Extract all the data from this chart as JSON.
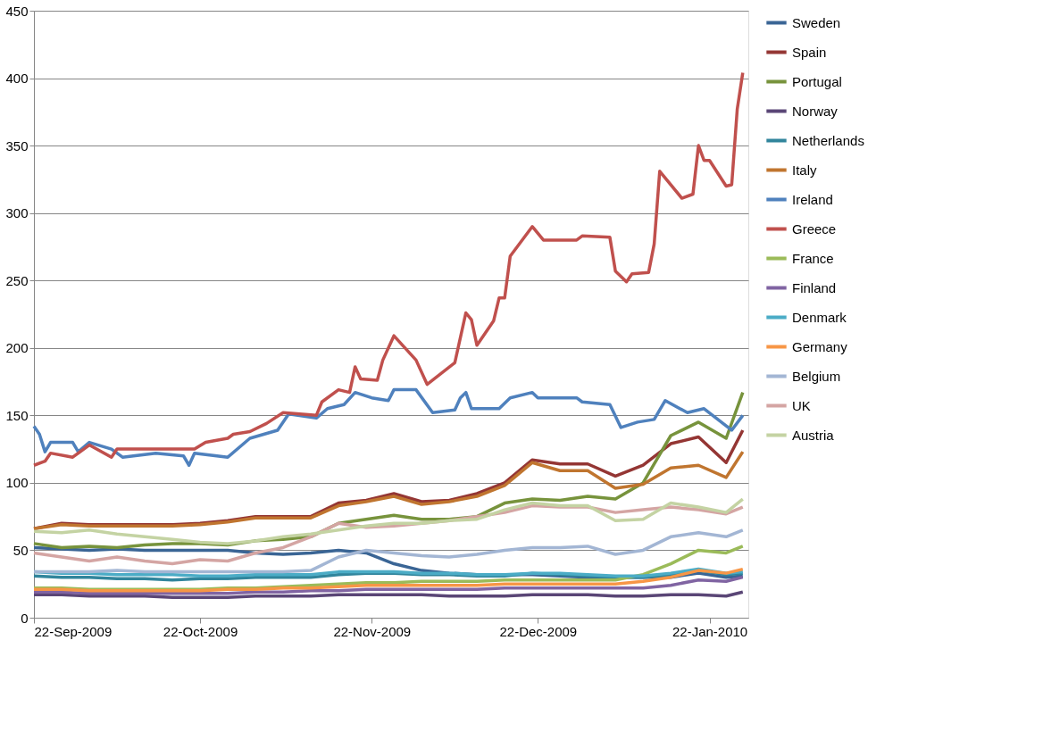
{
  "chart_data": {
    "type": "line",
    "x": [
      "2009-09-22",
      "2009-09-27",
      "2009-10-02",
      "2009-10-07",
      "2009-10-12",
      "2009-10-17",
      "2009-10-22",
      "2009-10-27",
      "2009-11-01",
      "2009-11-06",
      "2009-11-11",
      "2009-11-16",
      "2009-11-21",
      "2009-11-26",
      "2009-12-01",
      "2009-12-06",
      "2009-12-11",
      "2009-12-16",
      "2009-12-21",
      "2009-12-26",
      "2009-12-31",
      "2010-01-05",
      "2010-01-10",
      "2010-01-15",
      "2010-01-20",
      "2010-01-25",
      "2010-01-28"
    ],
    "xlim": [
      "2009-09-22",
      "2010-01-29"
    ],
    "xticks": [
      {
        "value": "2009-09-22",
        "label": "22-Sep-2009"
      },
      {
        "value": "2009-10-22",
        "label": "22-Oct-2009"
      },
      {
        "value": "2009-11-22",
        "label": "22-Nov-2009"
      },
      {
        "value": "2009-12-22",
        "label": "22-Dec-2009"
      },
      {
        "value": "2010-01-22",
        "label": "22-Jan-2010"
      }
    ],
    "ylim": [
      0,
      450
    ],
    "yticks": [
      0,
      50,
      100,
      150,
      200,
      250,
      300,
      350,
      400,
      450
    ],
    "grid": "y",
    "legend": "right",
    "marker": "none",
    "line_style": "solid",
    "series": [
      {
        "name": "Sweden",
        "color": "#3a6595",
        "values": [
          52,
          51,
          50,
          51,
          50,
          50,
          50,
          50,
          48,
          47,
          48,
          50,
          48,
          40,
          35,
          33,
          32,
          32,
          32,
          31,
          30,
          30,
          30,
          30,
          33,
          30,
          31
        ]
      },
      {
        "name": "Spain",
        "color": "#943634",
        "values": [
          66,
          70,
          69,
          69,
          69,
          69,
          70,
          72,
          75,
          75,
          75,
          85,
          87,
          92,
          86,
          87,
          92,
          100,
          117,
          114,
          114,
          105,
          113,
          129,
          134,
          115,
          139
        ]
      },
      {
        "name": "Portugal",
        "color": "#77933c",
        "values": [
          55,
          52,
          53,
          52,
          54,
          55,
          55,
          54,
          57,
          58,
          60,
          70,
          73,
          76,
          73,
          73,
          75,
          85,
          88,
          87,
          90,
          88,
          100,
          135,
          145,
          133,
          167
        ]
      },
      {
        "name": "Norway",
        "color": "#5a4676",
        "values": [
          17,
          17,
          16,
          16,
          16,
          15,
          15,
          15,
          16,
          16,
          16,
          17,
          17,
          17,
          17,
          16,
          16,
          16,
          17,
          17,
          17,
          16,
          16,
          17,
          17,
          16,
          19
        ]
      },
      {
        "name": "Netherlands",
        "color": "#31859c",
        "values": [
          31,
          30,
          30,
          29,
          29,
          28,
          29,
          29,
          30,
          30,
          30,
          32,
          33,
          33,
          32,
          32,
          31,
          31,
          33,
          32,
          31,
          30,
          30,
          32,
          35,
          32,
          33
        ]
      },
      {
        "name": "Italy",
        "color": "#c0752f",
        "values": [
          66,
          69,
          68,
          68,
          68,
          68,
          69,
          71,
          74,
          74,
          74,
          83,
          86,
          90,
          84,
          86,
          90,
          98,
          115,
          109,
          109,
          96,
          99,
          111,
          113,
          104,
          123
        ]
      },
      {
        "name": "Ireland",
        "color": "#4f81bd",
        "x": [
          "2009-09-22",
          "2009-09-23",
          "2009-09-24",
          "2009-09-25",
          "2009-09-29",
          "2009-09-30",
          "2009-10-02",
          "2009-10-06",
          "2009-10-08",
          "2009-10-14",
          "2009-10-19",
          "2009-10-20",
          "2009-10-21",
          "2009-10-27",
          "2009-10-31",
          "2009-11-05",
          "2009-11-07",
          "2009-11-12",
          "2009-11-14",
          "2009-11-17",
          "2009-11-19",
          "2009-11-22",
          "2009-11-25",
          "2009-11-26",
          "2009-11-30",
          "2009-12-03",
          "2009-12-07",
          "2009-12-08",
          "2009-12-09",
          "2009-12-10",
          "2009-12-15",
          "2009-12-17",
          "2009-12-21",
          "2009-12-22",
          "2009-12-29",
          "2009-12-30",
          "2010-01-04",
          "2010-01-06",
          "2010-01-09",
          "2010-01-12",
          "2010-01-14",
          "2010-01-18",
          "2010-01-21",
          "2010-01-26",
          "2010-01-28"
        ],
        "values": [
          142,
          136,
          123,
          130,
          130,
          123,
          130,
          125,
          119,
          122,
          120,
          113,
          122,
          119,
          133,
          139,
          151,
          148,
          155,
          158,
          167,
          163,
          161,
          169,
          169,
          152,
          154,
          163,
          167,
          155,
          155,
          163,
          167,
          163,
          163,
          160,
          158,
          141,
          145,
          147,
          161,
          152,
          155,
          139,
          150
        ]
      },
      {
        "name": "Greece",
        "color": "#c0504d",
        "x": [
          "2009-09-22",
          "2009-09-24",
          "2009-09-25",
          "2009-09-29",
          "2009-10-02",
          "2009-10-06",
          "2009-10-07",
          "2009-10-14",
          "2009-10-21",
          "2009-10-23",
          "2009-10-27",
          "2009-10-28",
          "2009-10-31",
          "2009-11-03",
          "2009-11-06",
          "2009-11-12",
          "2009-11-13",
          "2009-11-16",
          "2009-11-18",
          "2009-11-19",
          "2009-11-20",
          "2009-11-23",
          "2009-11-24",
          "2009-11-26",
          "2009-11-30",
          "2009-12-02",
          "2009-12-07",
          "2009-12-09",
          "2009-12-10",
          "2009-12-11",
          "2009-12-14",
          "2009-12-15",
          "2009-12-16",
          "2009-12-17",
          "2009-12-21",
          "2009-12-23",
          "2009-12-29",
          "2009-12-30",
          "2010-01-04",
          "2010-01-05",
          "2010-01-07",
          "2010-01-08",
          "2010-01-11",
          "2010-01-12",
          "2010-01-13",
          "2010-01-17",
          "2010-01-19",
          "2010-01-20",
          "2010-01-21",
          "2010-01-22",
          "2010-01-25",
          "2010-01-26",
          "2010-01-27",
          "2010-01-28"
        ],
        "values": [
          113,
          116,
          122,
          119,
          128,
          119,
          125,
          125,
          125,
          130,
          133,
          136,
          138,
          144,
          152,
          150,
          160,
          169,
          167,
          186,
          177,
          176,
          191,
          209,
          191,
          173,
          189,
          226,
          221,
          202,
          220,
          237,
          237,
          268,
          290,
          280,
          280,
          283,
          282,
          257,
          249,
          255,
          256,
          277,
          331,
          311,
          314,
          350,
          339,
          339,
          320,
          321,
          377,
          404
        ]
      },
      {
        "name": "France",
        "color": "#9bbb59",
        "values": [
          22,
          22,
          21,
          21,
          21,
          21,
          21,
          22,
          22,
          23,
          24,
          25,
          26,
          26,
          27,
          27,
          27,
          28,
          28,
          28,
          28,
          28,
          32,
          40,
          50,
          48,
          53
        ]
      },
      {
        "name": "Finland",
        "color": "#8064a2",
        "values": [
          19,
          19,
          18,
          18,
          18,
          18,
          18,
          18,
          19,
          19,
          20,
          20,
          21,
          21,
          21,
          21,
          21,
          22,
          22,
          22,
          22,
          22,
          22,
          24,
          28,
          27,
          30
        ]
      },
      {
        "name": "Denmark",
        "color": "#4bacc6",
        "values": [
          34,
          33,
          33,
          32,
          32,
          32,
          31,
          31,
          32,
          32,
          32,
          34,
          34,
          34,
          33,
          33,
          32,
          32,
          33,
          33,
          32,
          31,
          31,
          33,
          36,
          33,
          34
        ]
      },
      {
        "name": "Germany",
        "color": "#f79646",
        "values": [
          21,
          21,
          20,
          20,
          20,
          20,
          20,
          21,
          21,
          22,
          22,
          23,
          24,
          24,
          24,
          24,
          24,
          25,
          25,
          25,
          25,
          25,
          27,
          30,
          35,
          33,
          36
        ]
      },
      {
        "name": "Belgium",
        "color": "#a3b6d4",
        "values": [
          34,
          34,
          34,
          35,
          34,
          34,
          34,
          34,
          34,
          34,
          35,
          45,
          50,
          48,
          46,
          45,
          47,
          50,
          52,
          52,
          53,
          47,
          50,
          60,
          63,
          60,
          65
        ]
      },
      {
        "name": "UK",
        "color": "#d4a5a3",
        "values": [
          48,
          45,
          42,
          45,
          42,
          40,
          43,
          42,
          48,
          52,
          60,
          70,
          67,
          68,
          70,
          72,
          75,
          78,
          83,
          82,
          82,
          78,
          80,
          82,
          80,
          77,
          82
        ]
      },
      {
        "name": "Austria",
        "color": "#c4d3a3",
        "values": [
          64,
          63,
          65,
          62,
          60,
          58,
          56,
          55,
          57,
          60,
          62,
          65,
          68,
          70,
          70,
          72,
          73,
          80,
          85,
          83,
          83,
          72,
          73,
          85,
          82,
          78,
          88
        ]
      }
    ]
  }
}
